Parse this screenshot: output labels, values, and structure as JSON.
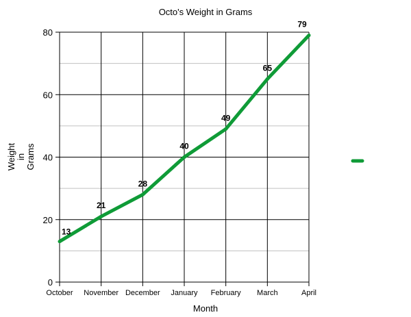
{
  "chart_data": {
    "type": "line",
    "title": "Octo's Weight in Grams",
    "xlabel": "Month",
    "ylabel": [
      "Weight",
      "in",
      "Grams"
    ],
    "categories": [
      "October",
      "November",
      "December",
      "January",
      "February",
      "March",
      "April"
    ],
    "series": [
      {
        "values": [
          13,
          21,
          28,
          40,
          49,
          65,
          79
        ],
        "color": "#0f9b37"
      }
    ],
    "ylim": [
      0,
      80
    ],
    "yticks": [
      0,
      20,
      40,
      60,
      80
    ],
    "major_grid_color": "#000000",
    "minor_grid_color": "#c0c0c0",
    "grid": true,
    "data_labels": true,
    "legend": {
      "position": "right",
      "entries": [
        ""
      ]
    }
  }
}
